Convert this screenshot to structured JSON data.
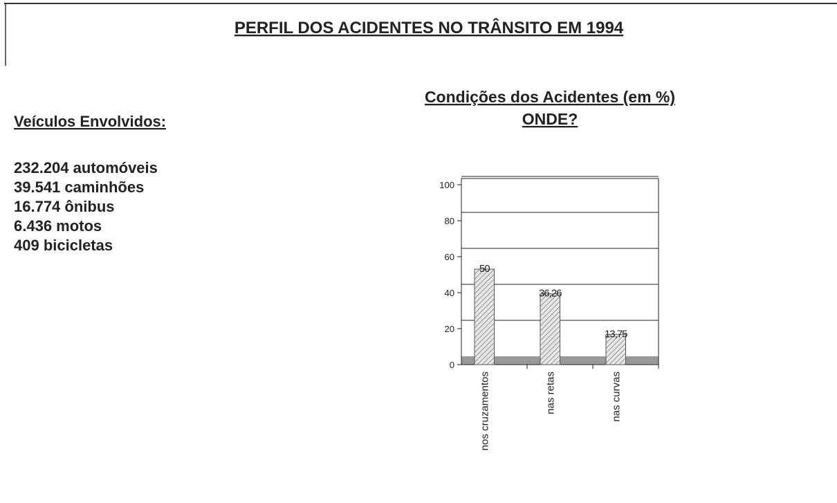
{
  "title": "PERFIL DOS ACIDENTES NO TRÂNSITO EM 1994",
  "vehicles": {
    "heading": "Veículos Envolvidos:",
    "items": [
      "232.204 automóveis",
      "39.541 caminhões",
      "16.774 ônibus",
      "6.436 motos",
      "409 bicicletas"
    ]
  },
  "chart_data": {
    "type": "bar",
    "title": "Condições dos Acidentes (em %)",
    "subtitle": "ONDE?",
    "categories": [
      "nos cruzamentos",
      "nas retas",
      "nas curvas"
    ],
    "values": [
      50,
      36.26,
      13.75
    ],
    "value_labels": [
      "50",
      "36,26",
      "13,75"
    ],
    "color": "#d8d8d8",
    "ylim": [
      0,
      100
    ],
    "yticks": [
      0,
      20,
      40,
      60,
      80,
      100
    ],
    "grid": true
  }
}
